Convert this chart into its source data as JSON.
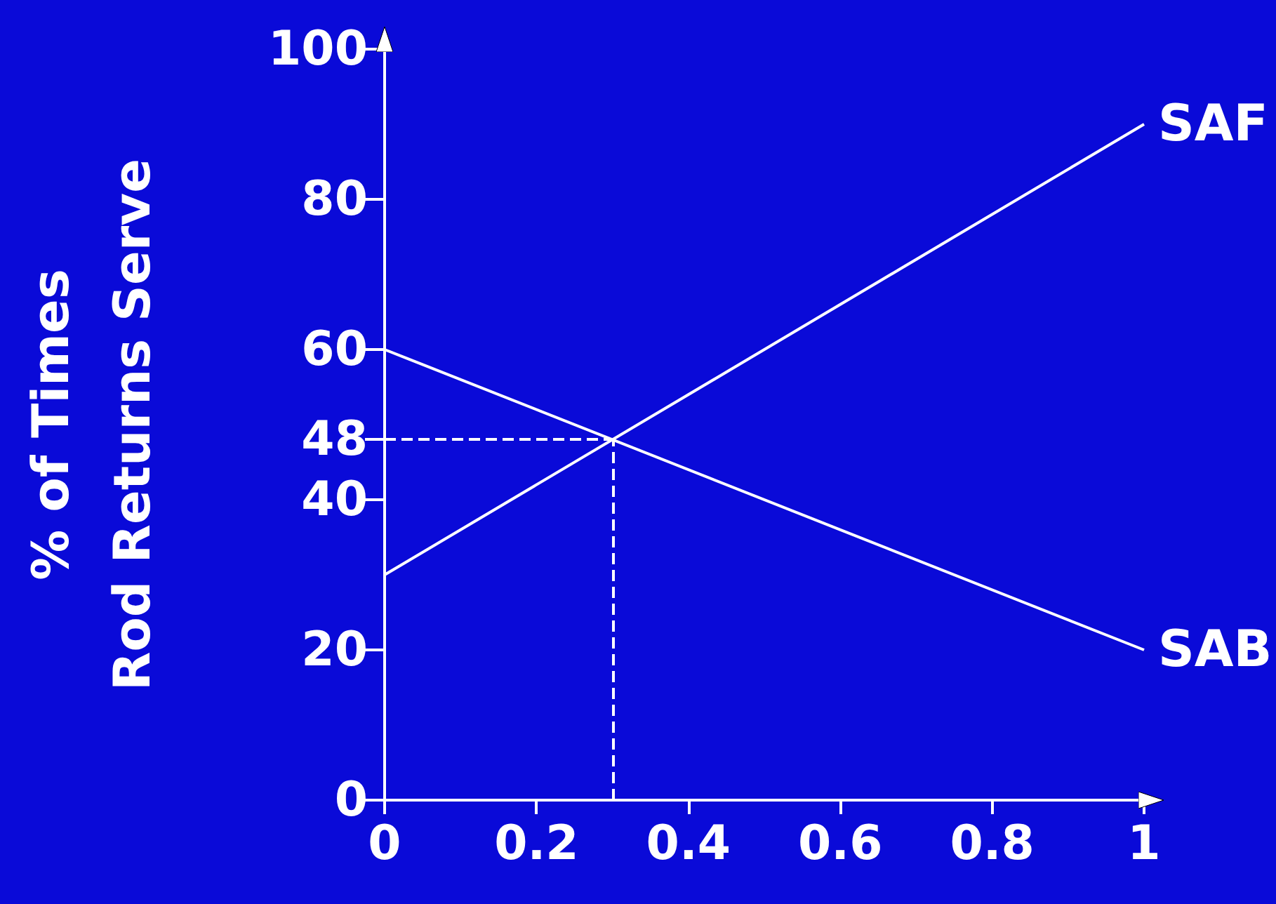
{
  "chart_data": {
    "type": "line",
    "ylabel": "% of Times\nRod Returns Serve",
    "x": [
      0,
      1
    ],
    "series": [
      {
        "name": "SAF",
        "color": "#ffffff",
        "values": [
          30,
          90
        ]
      },
      {
        "name": "SAB",
        "color": "#ffffff",
        "values": [
          60,
          20
        ]
      }
    ],
    "xlim": [
      0,
      1
    ],
    "xticks": [
      0,
      0.2,
      0.4,
      0.6,
      0.8,
      1
    ],
    "ylim": [
      0,
      100
    ],
    "yticks": [
      0,
      20,
      40,
      48,
      60,
      80,
      100
    ],
    "ref_lines": [
      {
        "axis": "x",
        "value": 0.3,
        "line_style": "dashed",
        "color": "#ffffff"
      },
      {
        "axis": "y",
        "value": 48,
        "line_style": "dashed",
        "color": "#ffffff"
      }
    ],
    "grid": false,
    "legend": false,
    "marker": "none",
    "line_style": "solid"
  }
}
